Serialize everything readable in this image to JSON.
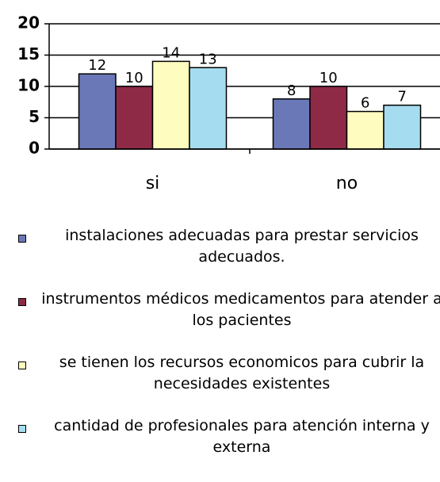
{
  "chart_data": {
    "type": "bar",
    "categories": [
      "si",
      "no"
    ],
    "series": [
      {
        "name": "instalaciones adecuadas para prestar servicios adecuados.",
        "color": "#6b78b8",
        "values": [
          12,
          8
        ]
      },
      {
        "name": "instrumentos médicos medicamentos para atender a los pacientes",
        "color": "#8e2a46",
        "values": [
          10,
          10
        ]
      },
      {
        "name": "se tienen los recursos economicos para cubrir la necesidades existentes",
        "color": "#fffcc0",
        "values": [
          14,
          6
        ]
      },
      {
        "name": "cantidad de profesionales para atención interna y externa",
        "color": "#a6dcf0",
        "values": [
          13,
          7
        ]
      }
    ],
    "ylim": [
      0,
      20
    ],
    "yticks": [
      0,
      5,
      10,
      15,
      20
    ],
    "grid": true,
    "legend": "bottom"
  }
}
